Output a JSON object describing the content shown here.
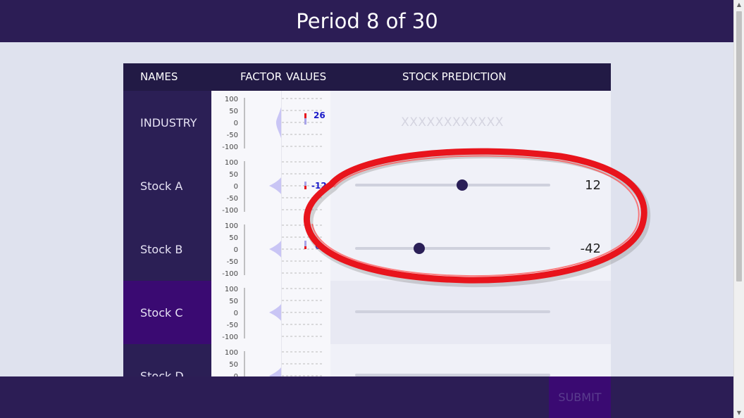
{
  "header": {
    "title": "Period 8 of 30"
  },
  "table": {
    "headers": {
      "names": "NAMES",
      "factor": "FACTOR",
      "values": "VALUES",
      "prediction": "STOCK PREDICTION"
    },
    "axis_ticks": [
      "100",
      "50",
      "0",
      "-50",
      "-100"
    ],
    "rows": [
      {
        "name": "INDUSTRY",
        "value_label": "26",
        "prediction_placeholder": "XXXXXXXXXXXX"
      },
      {
        "name": "Stock A",
        "value_label": "-12",
        "slider_value": "12",
        "slider_level": 12
      },
      {
        "name": "Stock B",
        "value_label": "6",
        "slider_value": "-42",
        "slider_level": -42
      },
      {
        "name": "Stock C"
      },
      {
        "name": "Stock D"
      }
    ]
  },
  "footer": {
    "submit_label": "SUBMIT"
  },
  "colors": {
    "header_bg": "#2c1d55",
    "name_cell_bg": "#2b1f55",
    "active_name_bg": "#3a0a72",
    "slider_thumb": "#2a1f57",
    "value_text": "#1a1ac8",
    "annotation": "#e8141c"
  }
}
